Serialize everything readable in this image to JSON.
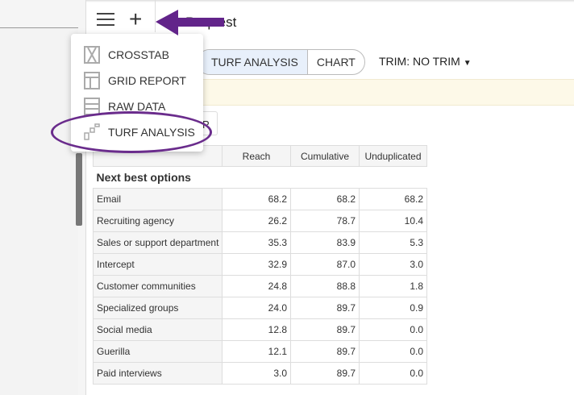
{
  "header": {
    "title": "Request"
  },
  "menu": {
    "items": [
      {
        "label": "CROSSTAB",
        "icon": "crosstab-icon"
      },
      {
        "label": "GRID REPORT",
        "icon": "grid-icon"
      },
      {
        "label": "RAW DATA",
        "icon": "raw-data-icon"
      },
      {
        "label": "TURF ANALYSIS",
        "icon": "turf-icon",
        "highlighted": true
      }
    ]
  },
  "view": {
    "tabs": [
      {
        "label": "TURF ANALYSIS",
        "active": true
      },
      {
        "label": "CHART"
      }
    ],
    "trim": "TRIM: NO TRIM"
  },
  "small_button": "P",
  "annotation_color": "#6a2c8c",
  "table": {
    "columns": [
      "",
      "Reach",
      "Cumulative",
      "Unduplicated"
    ],
    "section": "Next best options",
    "rows": [
      [
        "Email",
        "68.2",
        "68.2",
        "68.2"
      ],
      [
        "Recruiting agency",
        "26.2",
        "78.7",
        "10.4"
      ],
      [
        "Sales or support department",
        "35.3",
        "83.9",
        "5.3"
      ],
      [
        "Intercept",
        "32.9",
        "87.0",
        "3.0"
      ],
      [
        "Customer communities",
        "24.8",
        "88.8",
        "1.8"
      ],
      [
        "Specialized groups",
        "24.0",
        "89.7",
        "0.9"
      ],
      [
        "Social media",
        "12.8",
        "89.7",
        "0.0"
      ],
      [
        "Guerilla",
        "12.1",
        "89.7",
        "0.0"
      ],
      [
        "Paid interviews",
        "3.0",
        "89.7",
        "0.0"
      ]
    ]
  }
}
